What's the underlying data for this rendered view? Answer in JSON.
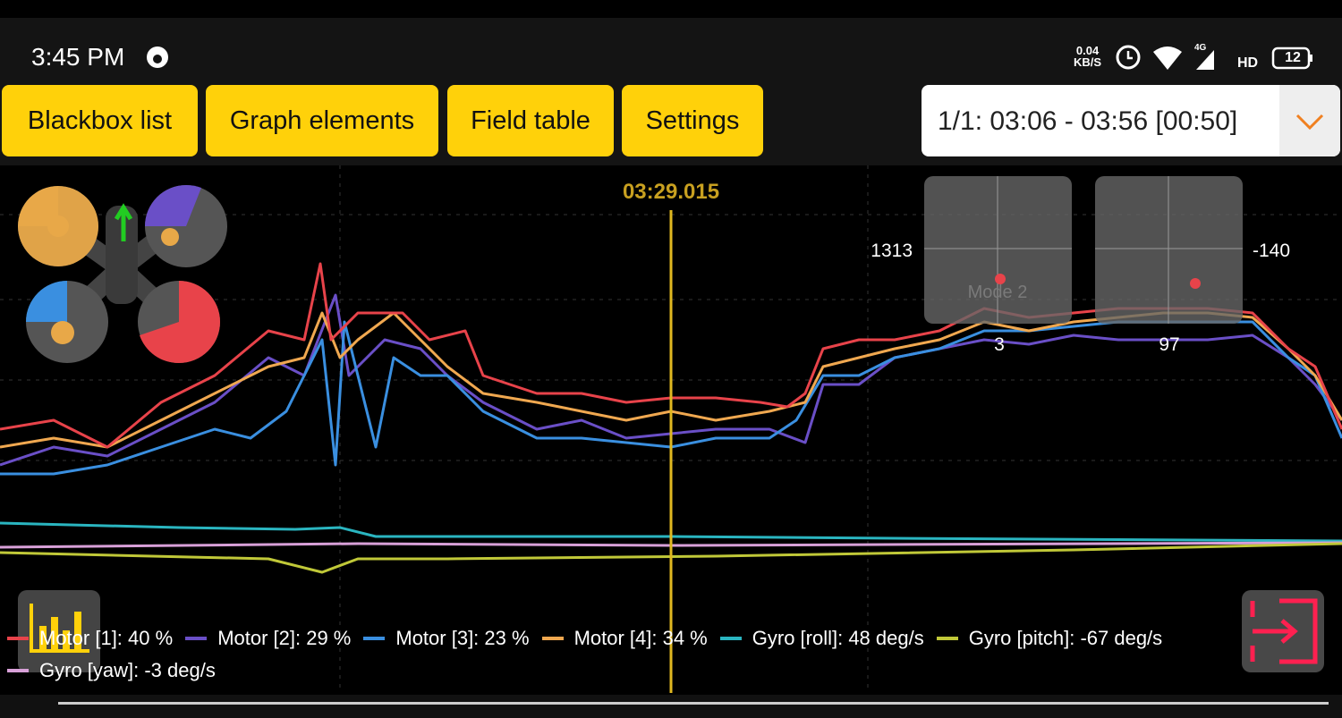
{
  "status_bar": {
    "time": "3:45 PM",
    "net_speed": "0.04",
    "net_unit": "KB/S",
    "network": "4G",
    "hd": "HD",
    "battery": "12"
  },
  "toolbar": {
    "buttons": [
      "Blackbox list",
      "Graph elements",
      "Field table",
      "Settings"
    ],
    "range_select": "1/1: 03:06 - 03:56 [00:50]"
  },
  "graph": {
    "cursor_time": "03:29.015",
    "sticks": [
      {
        "top_label": "1313",
        "bottom_label": "3",
        "mode": "Mode 2"
      },
      {
        "top_label": "-140",
        "bottom_label": "97"
      }
    ],
    "legend": [
      {
        "label": "Motor [1]: 40 %",
        "color": "#e8434a"
      },
      {
        "label": "Motor [2]: 29 %",
        "color": "#6a4fc7"
      },
      {
        "label": "Motor [3]: 23 %",
        "color": "#3a8fe0"
      },
      {
        "label": "Motor [4]: 34 %",
        "color": "#f0a850"
      },
      {
        "label": "Gyro [roll]: 48 deg/s",
        "color": "#2ab5c0"
      },
      {
        "label": "Gyro [pitch]: -67 deg/s",
        "color": "#c0c838"
      },
      {
        "label": "Gyro [yaw]: -3 deg/s",
        "color": "#d8a0d8"
      }
    ]
  }
}
